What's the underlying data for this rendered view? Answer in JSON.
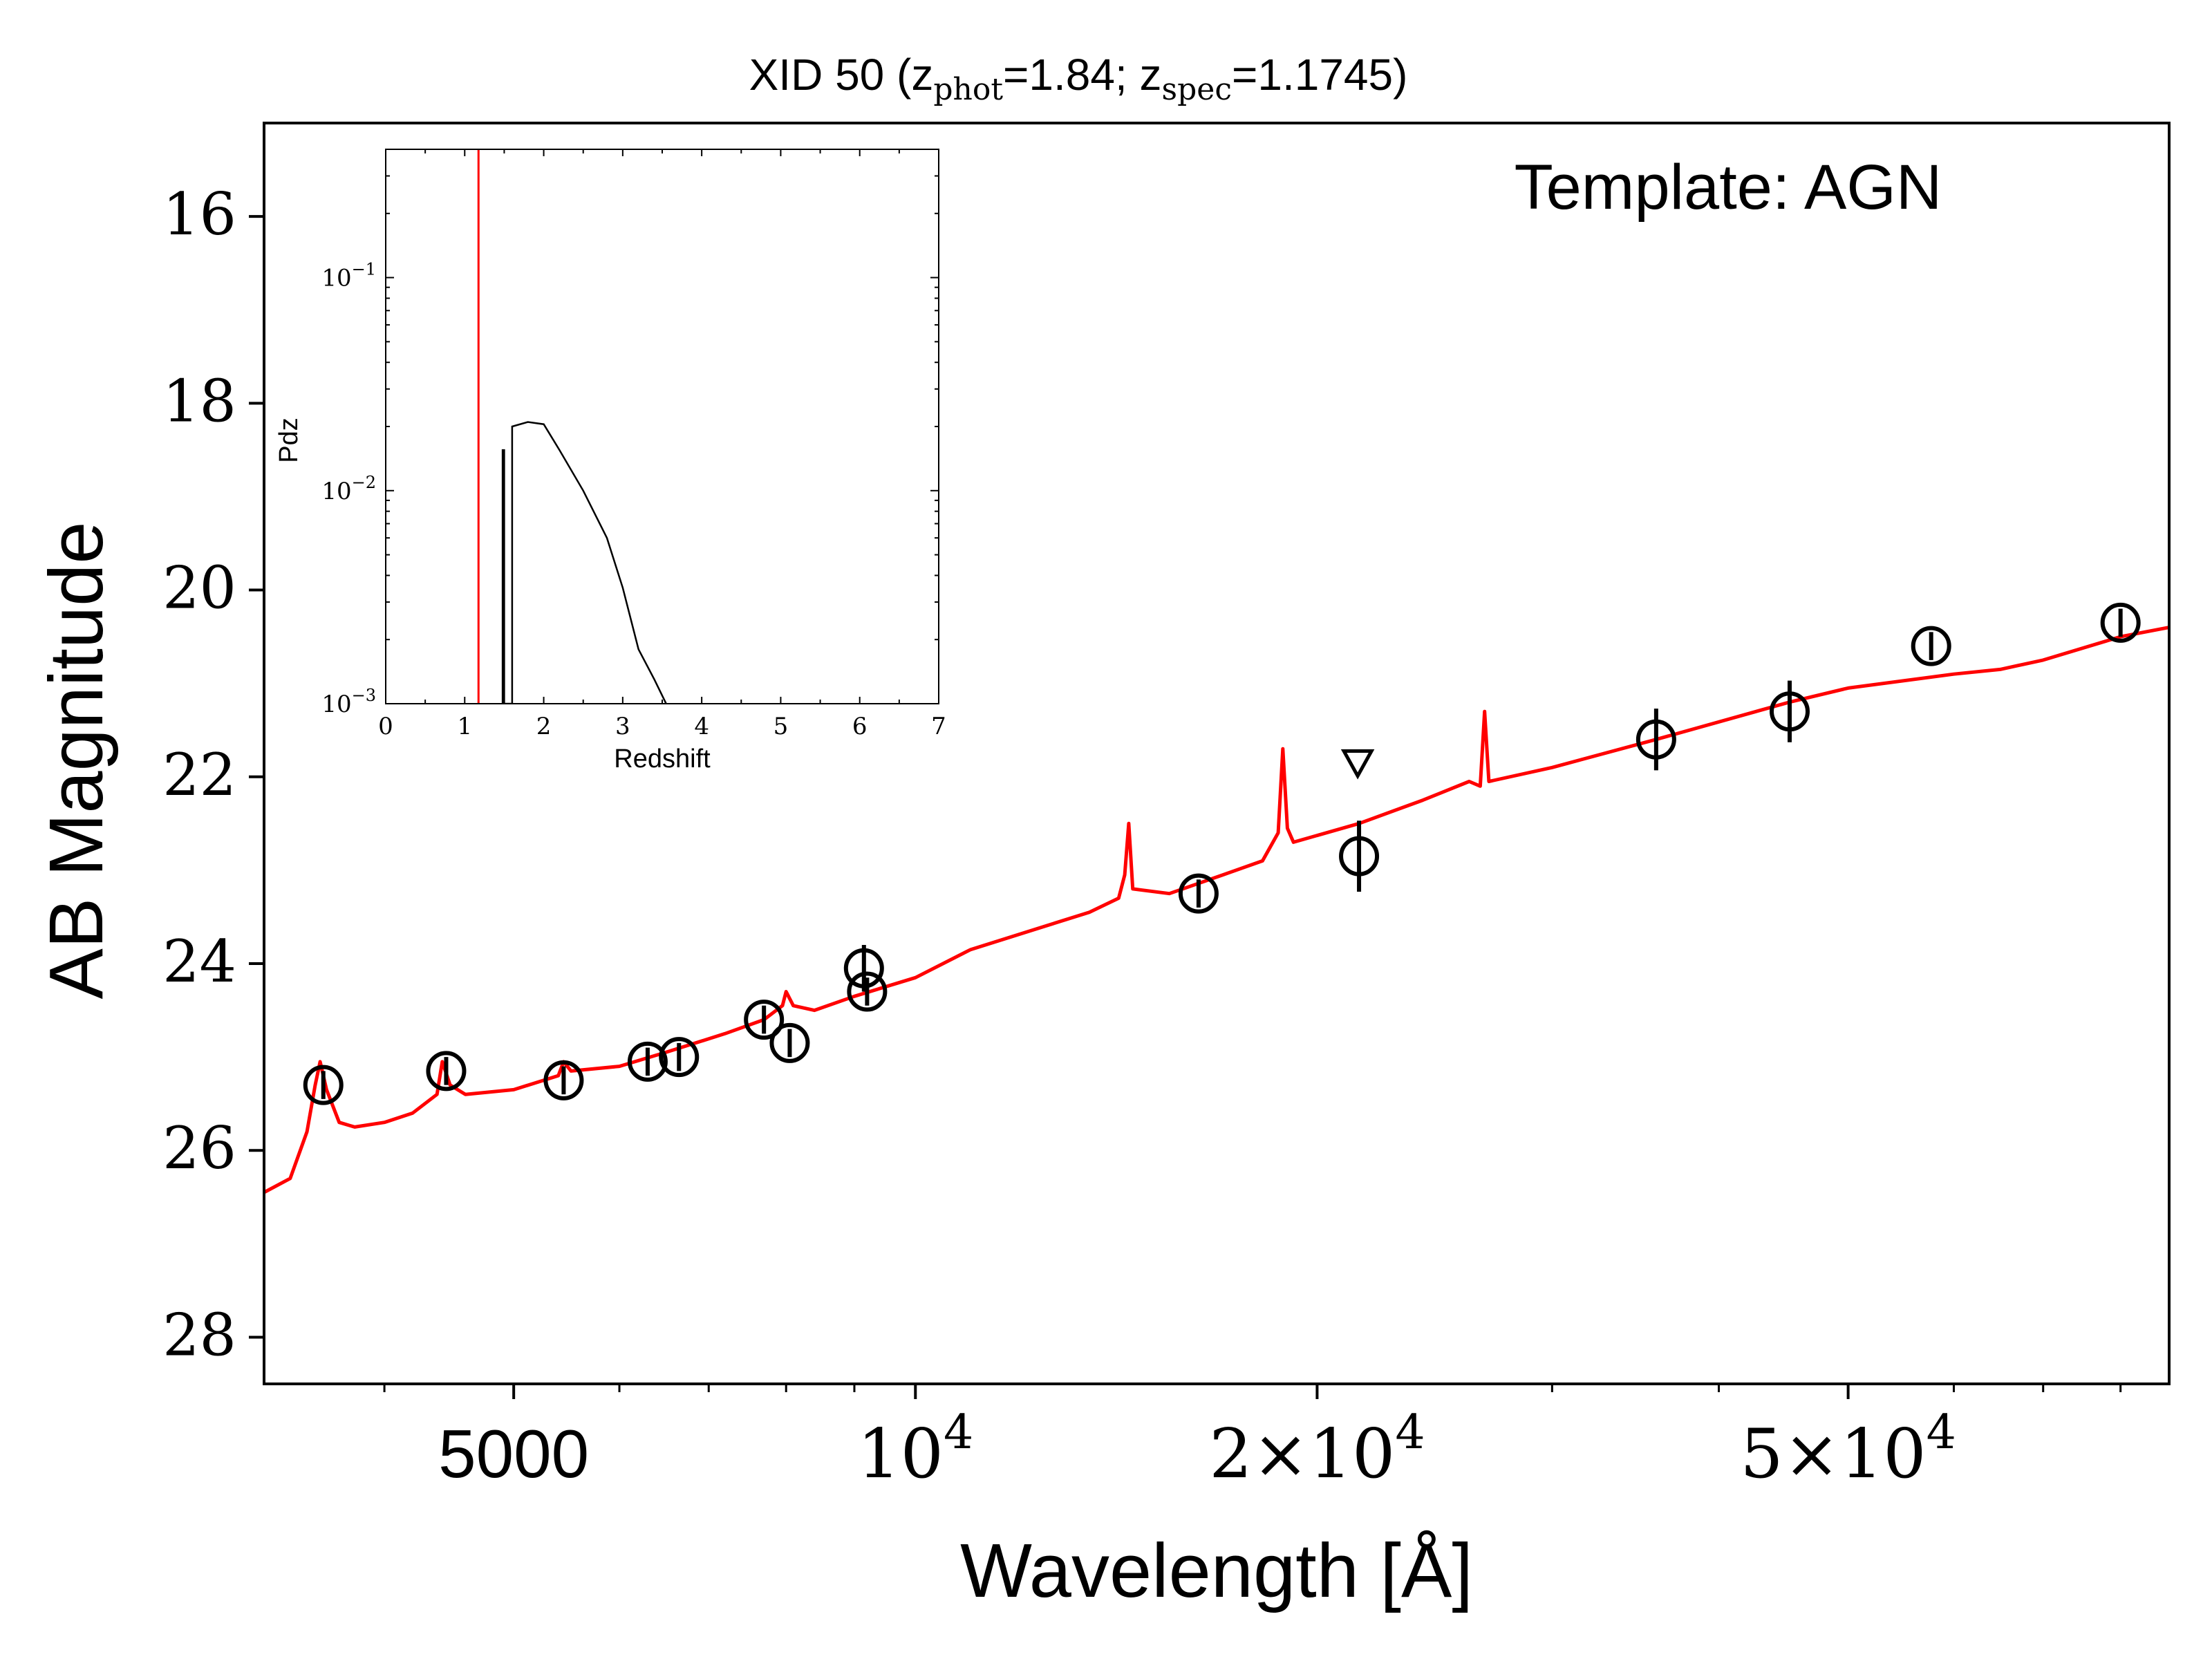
{
  "chart_data": {
    "type": "scatter",
    "title": {
      "prefix": "XID 50 (z",
      "sub1": "phot",
      "mid": "=1.84; z",
      "sub2": "spec",
      "suffix": "=1.1745)"
    },
    "annotation": "Template: AGN",
    "xlabel": "Wavelength [Å]",
    "ylabel": "AB Magnitude",
    "xscale": "log",
    "xlim": [
      3250,
      87000
    ],
    "ylim": [
      28.5,
      15.0
    ],
    "yticks": [
      "16",
      "18",
      "20",
      "22",
      "24",
      "26",
      "28"
    ],
    "xticks": [
      {
        "value": 5000,
        "label": "5000"
      },
      {
        "value": 10000,
        "base": "10",
        "exp": "4"
      },
      {
        "value": 20000,
        "base": "2×10",
        "exp": "4"
      },
      {
        "value": 50000,
        "base": "5×10",
        "exp": "4"
      }
    ],
    "grid": false,
    "series": [
      {
        "kind": "photometry",
        "color": "#000000",
        "points": [
          {
            "x": 3600,
            "y": 25.3,
            "err": 0.15
          },
          {
            "x": 4450,
            "y": 25.15,
            "err": 0.15
          },
          {
            "x": 5450,
            "y": 25.25,
            "err": 0.15
          },
          {
            "x": 6300,
            "y": 25.05,
            "err": 0.15
          },
          {
            "x": 6650,
            "y": 25.0,
            "err": 0.15
          },
          {
            "x": 7700,
            "y": 24.6,
            "err": 0.15
          },
          {
            "x": 8050,
            "y": 24.85,
            "err": 0.15
          },
          {
            "x": 9150,
            "y": 24.05,
            "err": 0.25
          },
          {
            "x": 9200,
            "y": 24.3,
            "err": 0.15
          },
          {
            "x": 16300,
            "y": 23.25,
            "err": 0.15
          },
          {
            "x": 21500,
            "y": 22.85,
            "err": 0.38
          },
          {
            "x": 35900,
            "y": 21.6,
            "err": 0.33
          },
          {
            "x": 45200,
            "y": 21.3,
            "err": 0.33
          },
          {
            "x": 57700,
            "y": 20.6,
            "err": 0.15
          },
          {
            "x": 80000,
            "y": 20.35,
            "err": 0.15
          }
        ],
        "upper_limits": [
          {
            "x": 21450,
            "y": 21.85
          }
        ]
      },
      {
        "kind": "template",
        "color": "#ff0000",
        "points": [
          [
            3250,
            26.45
          ],
          [
            3400,
            26.3
          ],
          [
            3500,
            25.8
          ],
          [
            3550,
            25.3
          ],
          [
            3580,
            25.05
          ],
          [
            3620,
            25.35
          ],
          [
            3700,
            25.7
          ],
          [
            3800,
            25.75
          ],
          [
            4000,
            25.7
          ],
          [
            4200,
            25.6
          ],
          [
            4380,
            25.4
          ],
          [
            4420,
            25.05
          ],
          [
            4480,
            25.3
          ],
          [
            4600,
            25.4
          ],
          [
            5000,
            25.35
          ],
          [
            5400,
            25.2
          ],
          [
            5450,
            25.05
          ],
          [
            5520,
            25.15
          ],
          [
            6000,
            25.1
          ],
          [
            6500,
            24.95
          ],
          [
            7200,
            24.75
          ],
          [
            7700,
            24.6
          ],
          [
            7950,
            24.45
          ],
          [
            8000,
            24.3
          ],
          [
            8100,
            24.45
          ],
          [
            8400,
            24.5
          ],
          [
            9000,
            24.35
          ],
          [
            10000,
            24.15
          ],
          [
            11000,
            23.85
          ],
          [
            12500,
            23.6
          ],
          [
            13500,
            23.45
          ],
          [
            14200,
            23.3
          ],
          [
            14350,
            23.05
          ],
          [
            14450,
            22.5
          ],
          [
            14550,
            23.2
          ],
          [
            15500,
            23.25
          ],
          [
            17000,
            23.05
          ],
          [
            18200,
            22.9
          ],
          [
            18700,
            22.6
          ],
          [
            18850,
            21.7
          ],
          [
            19000,
            22.55
          ],
          [
            19200,
            22.7
          ],
          [
            21500,
            22.5
          ],
          [
            24000,
            22.25
          ],
          [
            26000,
            22.05
          ],
          [
            26500,
            22.1
          ],
          [
            26700,
            21.3
          ],
          [
            26900,
            22.05
          ],
          [
            30000,
            21.9
          ],
          [
            35900,
            21.6
          ],
          [
            45200,
            21.2
          ],
          [
            50000,
            21.05
          ],
          [
            60000,
            20.9
          ],
          [
            65000,
            20.85
          ],
          [
            70000,
            20.75
          ],
          [
            80000,
            20.5
          ],
          [
            87000,
            20.4
          ]
        ]
      }
    ],
    "inset": {
      "xlabel": "Redshift",
      "ylabel": "Pdz",
      "xlim": [
        0,
        7
      ],
      "xticks": [
        "0",
        "1",
        "2",
        "3",
        "4",
        "5",
        "6",
        "7"
      ],
      "yscale": "log",
      "ylim": [
        0.001,
        0.4
      ],
      "yticks": [
        {
          "value": 0.1,
          "base": "10",
          "exp": "−1"
        },
        {
          "value": 0.01,
          "base": "10",
          "exp": "−2"
        },
        {
          "value": 0.001,
          "base": "10",
          "exp": "−3"
        }
      ],
      "spec_z_line": {
        "x": 1.1745,
        "color": "#ff0000"
      },
      "pdz": [
        [
          1.48,
          0.001
        ],
        [
          1.48,
          0.0155
        ],
        [
          1.5,
          0.0155
        ],
        [
          1.5,
          0.001
        ],
        [
          1.6,
          0.001
        ],
        [
          1.6,
          0.02
        ],
        [
          1.8,
          0.021
        ],
        [
          2.0,
          0.0205
        ],
        [
          2.2,
          0.0155
        ],
        [
          2.5,
          0.01
        ],
        [
          2.8,
          0.006
        ],
        [
          3.0,
          0.0035
        ],
        [
          3.2,
          0.0018
        ],
        [
          3.4,
          0.0013
        ],
        [
          3.55,
          0.001
        ]
      ]
    }
  }
}
